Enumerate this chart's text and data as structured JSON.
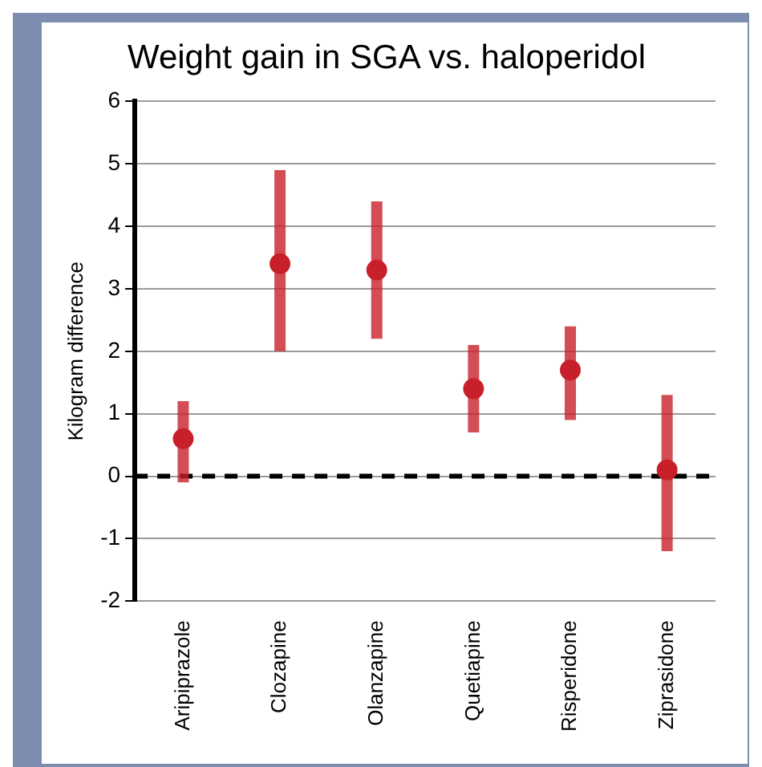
{
  "chart_data": {
    "type": "scatter",
    "title": "Weight gain in SGA vs. haloperidol",
    "ylabel": "Kilogram difference",
    "categories": [
      "Aripiprazole",
      "Clozapine",
      "Olanzapine",
      "Quetiapine",
      "Risperidone",
      "Ziprasidone"
    ],
    "series": [
      {
        "color": "#c8202a",
        "values": [
          0.6,
          3.4,
          3.3,
          1.4,
          1.7,
          0.1
        ],
        "errors": [
          [
            -0.1,
            1.2
          ],
          [
            2.0,
            4.9
          ],
          [
            2.2,
            4.4
          ],
          [
            0.7,
            2.1
          ],
          [
            0.9,
            2.4
          ],
          [
            -1.2,
            1.3
          ]
        ]
      }
    ],
    "ylim": [
      -2,
      6
    ],
    "yticks": [
      -2,
      -1,
      0,
      1,
      2,
      3,
      4,
      5,
      6
    ],
    "grid": "y",
    "marker": "circle",
    "legend": false,
    "ref_lines": [
      {
        "axis": "y",
        "value": 0,
        "color": "#000000",
        "line_style": "dashed"
      }
    ]
  }
}
